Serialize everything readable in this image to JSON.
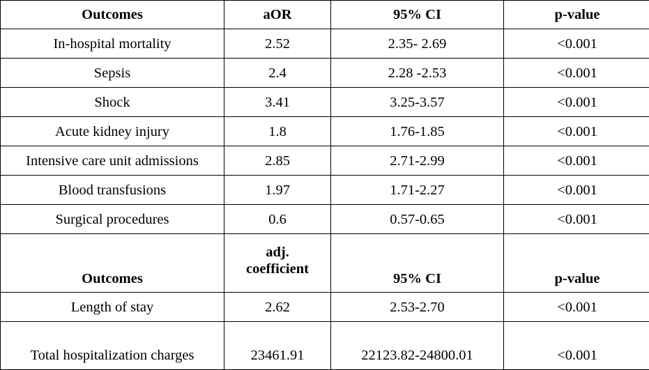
{
  "header1": {
    "outcomes": "Outcomes",
    "aor": "aOR",
    "ci": "95% CI",
    "p": "p-value"
  },
  "rows1": [
    {
      "outcome": "In-hospital mortality",
      "aor": "2.52",
      "ci": "2.35- 2.69",
      "p": "<0.001"
    },
    {
      "outcome": "Sepsis",
      "aor": "2.4",
      "ci": "2.28 -2.53",
      "p": "<0.001"
    },
    {
      "outcome": "Shock",
      "aor": "3.41",
      "ci": "3.25-3.57",
      "p": "<0.001"
    },
    {
      "outcome": "Acute kidney injury",
      "aor": "1.8",
      "ci": "1.76-1.85",
      "p": "<0.001"
    },
    {
      "outcome": "Intensive care unit admissions",
      "aor": "2.85",
      "ci": "2.71-2.99",
      "p": "<0.001"
    },
    {
      "outcome": "Blood transfusions",
      "aor": "1.97",
      "ci": "1.71-2.27",
      "p": "<0.001"
    },
    {
      "outcome": "Surgical procedures",
      "aor": "0.6",
      "ci": "0.57-0.65",
      "p": "<0.001"
    }
  ],
  "header2": {
    "outcomes": "Outcomes",
    "coef_line1": "adj.",
    "coef_line2": "coefficient",
    "ci": "95% CI",
    "p": "p-value"
  },
  "rows2": [
    {
      "outcome": "Length of stay",
      "coef": "2.62",
      "ci": "2.53-2.70",
      "p": "<0.001"
    },
    {
      "outcome": "Total hospitalization charges",
      "coef": "23461.91",
      "ci": "22123.82-24800.01",
      "p": "<0.001"
    }
  ]
}
